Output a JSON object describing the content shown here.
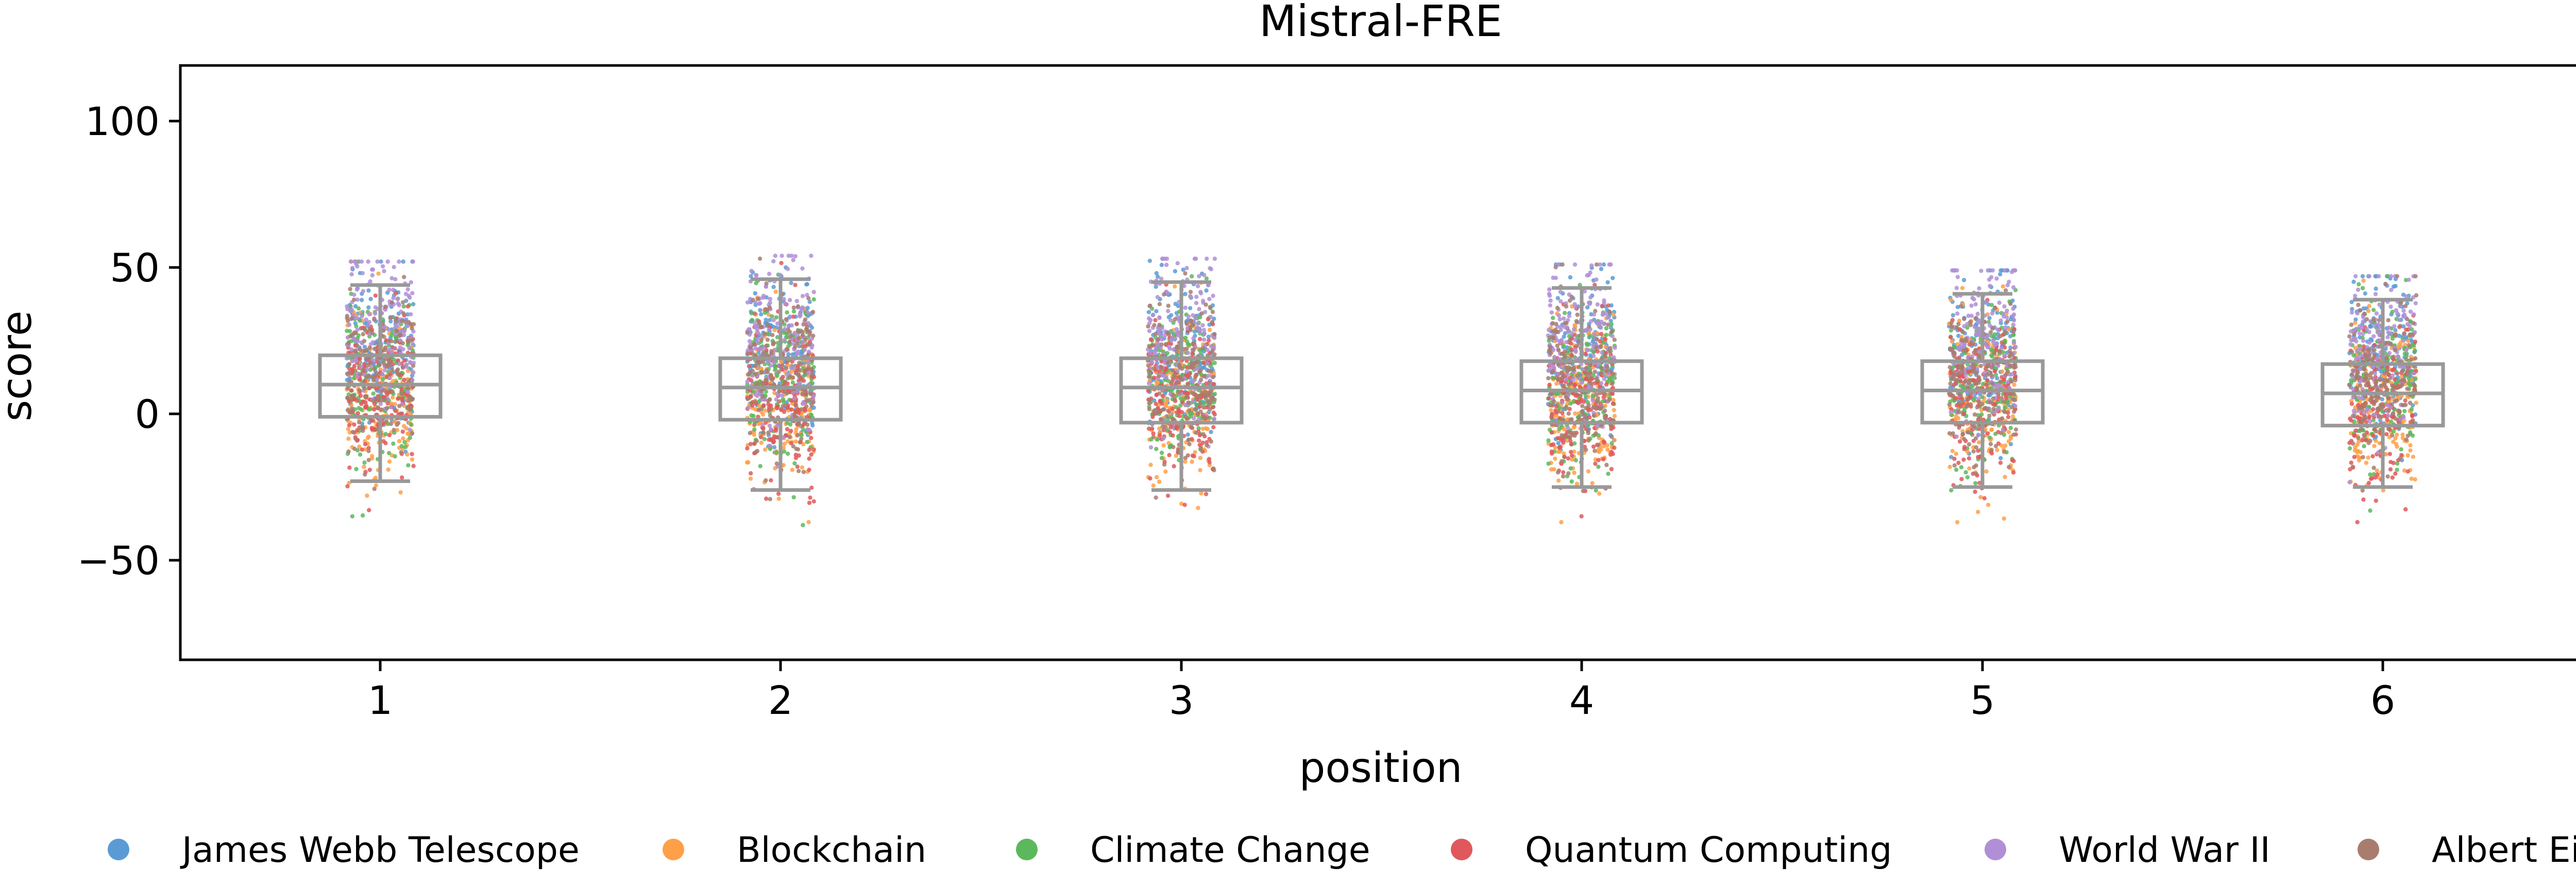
{
  "chart_data": {
    "type": "scatter",
    "subtype": "strip-plot-with-boxplot",
    "title": "Mistral-FRE",
    "xlabel": "position",
    "ylabel": "score",
    "x_ticks": [
      "1",
      "2",
      "3",
      "4",
      "5",
      "6"
    ],
    "y_ticks": [
      "100",
      "50",
      "0",
      "−50"
    ],
    "y_tick_values": [
      100,
      50,
      0,
      -50
    ],
    "ylim": [
      -84,
      119
    ],
    "grid": false,
    "legend_position": "bottom",
    "box_color": "#999999",
    "series": [
      {
        "name": "James Webb Telescope",
        "color": "#5a9bd5"
      },
      {
        "name": "Blockchain",
        "color": "#ffa048"
      },
      {
        "name": "Climate Change",
        "color": "#5cb85c"
      },
      {
        "name": "Quantum Computing",
        "color": "#e0585b"
      },
      {
        "name": "World War II",
        "color": "#b08fd6"
      },
      {
        "name": "Albert Einstein",
        "color": "#a87d6e"
      }
    ],
    "boxes": [
      {
        "position": "1",
        "whisker_low": -23,
        "q1": -1,
        "median": 10,
        "q3": 20,
        "whisker_high": 44
      },
      {
        "position": "2",
        "whisker_low": -26,
        "q1": -2,
        "median": 9,
        "q3": 19,
        "whisker_high": 46
      },
      {
        "position": "3",
        "whisker_low": -26,
        "q1": -3,
        "median": 9,
        "q3": 19,
        "whisker_high": 45
      },
      {
        "position": "4",
        "whisker_low": -25,
        "q1": -3,
        "median": 8,
        "q3": 18,
        "whisker_high": 43
      },
      {
        "position": "5",
        "whisker_low": -25,
        "q1": -3,
        "median": 8,
        "q3": 18,
        "whisker_high": 41
      },
      {
        "position": "6",
        "whisker_low": -25,
        "q1": -4,
        "median": 7,
        "q3": 17,
        "whisker_high": 39
      }
    ],
    "series_mean_offsets": [
      11,
      -4,
      2,
      -3,
      17,
      4
    ],
    "point_spread_sd": 14,
    "points_per_series_per_position": 170
  }
}
